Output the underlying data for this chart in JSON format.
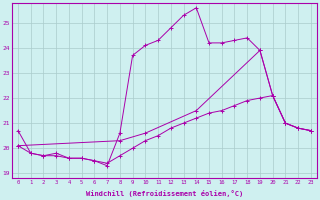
{
  "xlabel": "Windchill (Refroidissement éolien,°C)",
  "background_color": "#cff0f0",
  "grid_color": "#aacccc",
  "line_color": "#aa00aa",
  "xlim": [
    -0.5,
    23.5
  ],
  "ylim": [
    18.8,
    25.8
  ],
  "yticks": [
    19,
    20,
    21,
    22,
    23,
    24,
    25
  ],
  "xticks": [
    0,
    1,
    2,
    3,
    4,
    5,
    6,
    7,
    8,
    9,
    10,
    11,
    12,
    13,
    14,
    15,
    16,
    17,
    18,
    19,
    20,
    21,
    22,
    23
  ],
  "series1": {
    "x": [
      0,
      1,
      2,
      3,
      4,
      5,
      6,
      7,
      8,
      9,
      10,
      11,
      12,
      13,
      14,
      15,
      16,
      17,
      18,
      19,
      20,
      21,
      22,
      23
    ],
    "y": [
      20.7,
      19.8,
      19.7,
      19.8,
      19.6,
      19.6,
      19.5,
      19.3,
      20.6,
      23.7,
      24.1,
      24.3,
      24.8,
      25.3,
      25.6,
      24.2,
      24.2,
      24.3,
      24.4,
      23.9,
      22.1,
      21.0,
      20.8,
      20.7
    ]
  },
  "series2": {
    "x": [
      0,
      1,
      2,
      3,
      4,
      5,
      6,
      7,
      8,
      9,
      10,
      11,
      12,
      13,
      14,
      15,
      16,
      17,
      18,
      19,
      20,
      21,
      22,
      23
    ],
    "y": [
      20.1,
      19.8,
      19.7,
      19.7,
      19.6,
      19.6,
      19.5,
      19.4,
      19.7,
      20.0,
      20.3,
      20.5,
      20.8,
      21.0,
      21.2,
      21.4,
      21.5,
      21.7,
      21.9,
      22.0,
      22.1,
      21.0,
      20.8,
      20.7
    ]
  },
  "series3": {
    "x": [
      0,
      8,
      10,
      14,
      19,
      20,
      21,
      22,
      23
    ],
    "y": [
      20.1,
      20.3,
      20.6,
      21.5,
      23.9,
      22.1,
      21.0,
      20.8,
      20.7
    ]
  }
}
